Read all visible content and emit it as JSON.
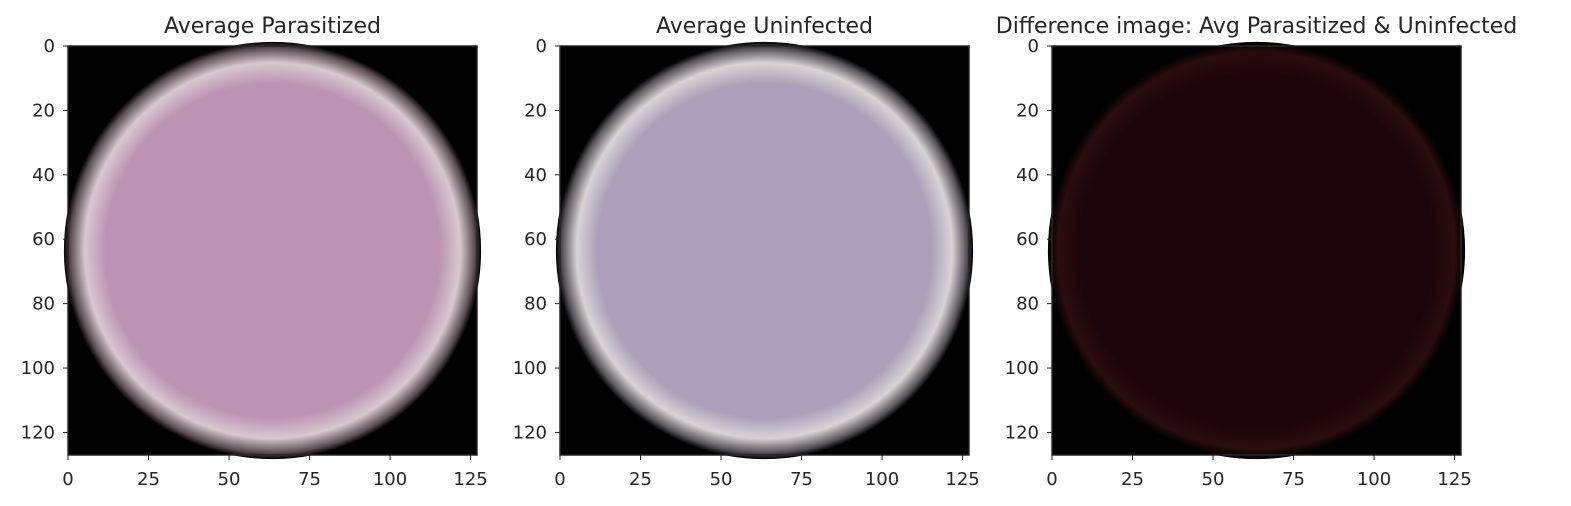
{
  "chart_data": [
    {
      "type": "heatmap",
      "title": "Average Parasitized",
      "xlim": [
        0,
        127
      ],
      "ylim": [
        127,
        0
      ],
      "x_ticks": [
        0,
        25,
        50,
        75,
        100,
        125
      ],
      "y_ticks": [
        0,
        20,
        40,
        60,
        80,
        100,
        120
      ],
      "image": {
        "background": "#000000",
        "cell_color": "#bb93b3",
        "edge_color": "#d8c8cf"
      }
    },
    {
      "type": "heatmap",
      "title": "Average Uninfected",
      "xlim": [
        0,
        127
      ],
      "ylim": [
        127,
        0
      ],
      "x_ticks": [
        0,
        25,
        50,
        75,
        100,
        125
      ],
      "y_ticks": [
        0,
        20,
        40,
        60,
        80,
        100,
        120
      ],
      "image": {
        "background": "#000000",
        "cell_color": "#ab9fb9",
        "edge_color": "#d6d4d4"
      }
    },
    {
      "type": "heatmap",
      "title": "Difference image: Avg Parasitized & Uninfected",
      "xlim": [
        0,
        127
      ],
      "ylim": [
        127,
        0
      ],
      "x_ticks": [
        0,
        25,
        50,
        75,
        100,
        125
      ],
      "y_ticks": [
        0,
        20,
        40,
        60,
        80,
        100,
        120
      ],
      "image": {
        "background": "#000000",
        "cell_color": "#1c0508",
        "edge_color": "#2a0d0e"
      }
    }
  ]
}
